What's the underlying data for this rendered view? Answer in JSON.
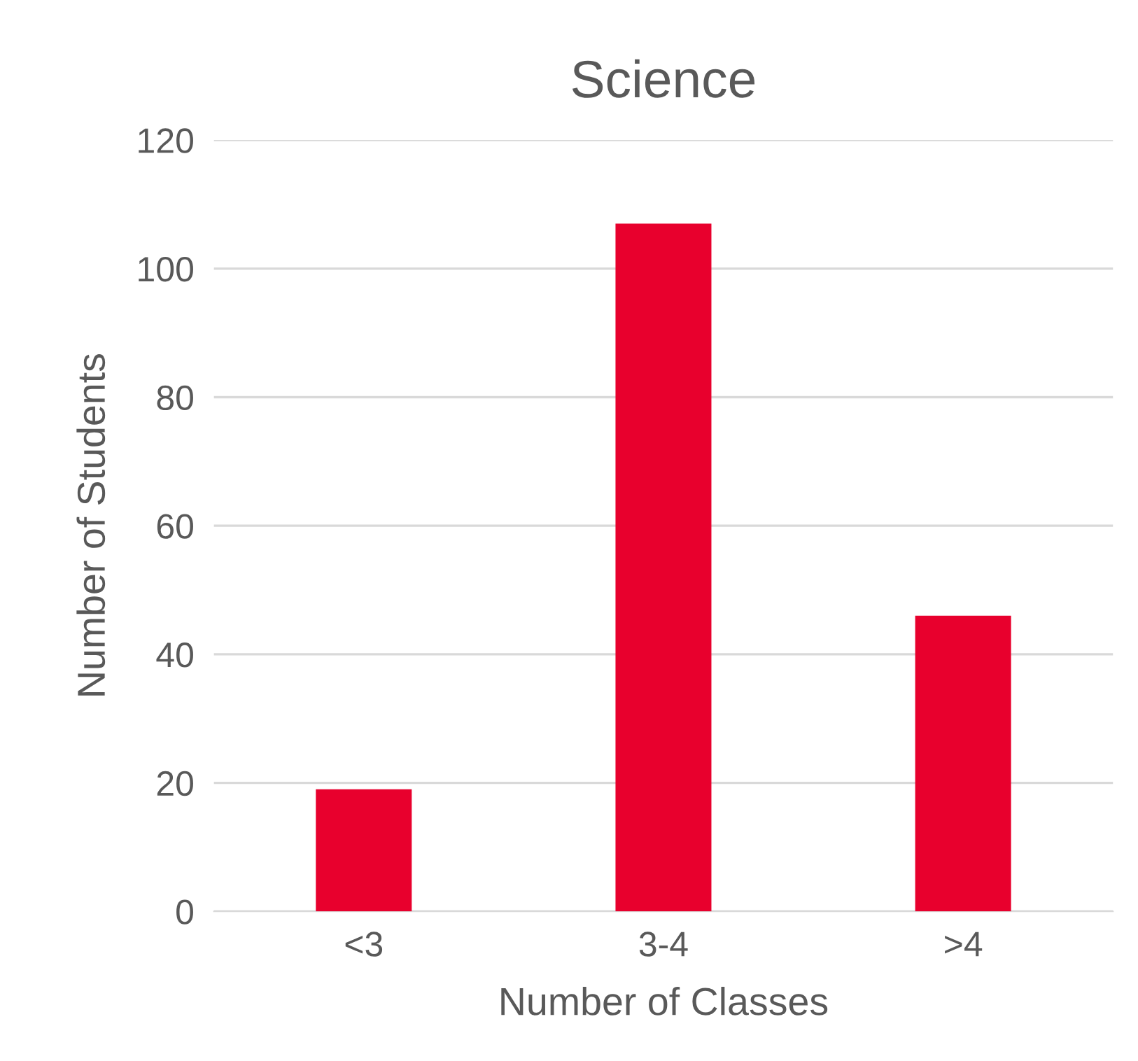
{
  "chart_data": {
    "type": "bar",
    "title": "Science",
    "xlabel": "Number of Classes",
    "ylabel": "Number of Students",
    "categories": [
      "<3",
      "3-4",
      ">4"
    ],
    "values": [
      19,
      107,
      46
    ],
    "color": "#e8002d",
    "ylim": [
      0,
      120
    ],
    "yticks": [
      0,
      20,
      40,
      60,
      80,
      100,
      120
    ],
    "grid": "y"
  }
}
